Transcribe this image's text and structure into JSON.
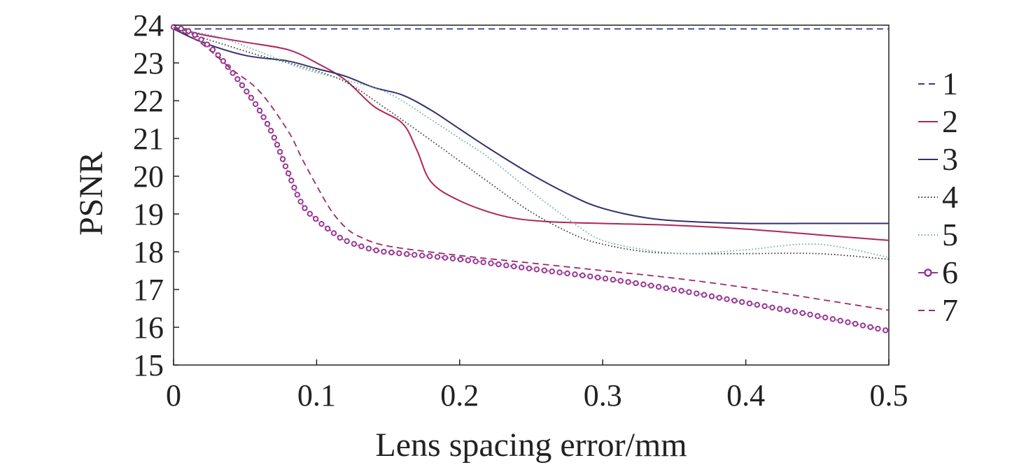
{
  "chart_data": {
    "type": "line",
    "title": "",
    "xlabel": "Lens spacing error/mm",
    "ylabel": "PSNR",
    "xlim": [
      0,
      0.5
    ],
    "ylim": [
      15,
      24
    ],
    "xticks": [
      0,
      0.1,
      0.2,
      0.3,
      0.4,
      0.5
    ],
    "xtick_labels": [
      "0",
      "0.1",
      "0.2",
      "0.3",
      "0.4",
      "0.5"
    ],
    "yticks": [
      15,
      16,
      17,
      18,
      19,
      20,
      21,
      22,
      23,
      24
    ],
    "ytick_labels": [
      "15",
      "16",
      "17",
      "18",
      "19",
      "20",
      "21",
      "22",
      "23",
      "24"
    ],
    "grid": false,
    "legend_position": "right",
    "series": [
      {
        "name": "1",
        "color": "#3a3a8c",
        "style": "dashed",
        "x": [
          0,
          0.5
        ],
        "y": [
          23.9,
          23.9
        ]
      },
      {
        "name": "2",
        "color": "#b0245a",
        "style": "solid",
        "x": [
          0,
          0.02,
          0.05,
          0.08,
          0.1,
          0.12,
          0.14,
          0.16,
          0.17,
          0.18,
          0.2,
          0.23,
          0.26,
          0.3,
          0.35,
          0.4,
          0.45,
          0.5
        ],
        "y": [
          23.95,
          23.75,
          23.55,
          23.35,
          23.0,
          22.55,
          21.85,
          21.4,
          20.7,
          19.85,
          19.35,
          18.95,
          18.8,
          18.75,
          18.7,
          18.6,
          18.45,
          18.3
        ]
      },
      {
        "name": "3",
        "color": "#34306e",
        "style": "solid",
        "x": [
          0,
          0.02,
          0.05,
          0.08,
          0.1,
          0.12,
          0.14,
          0.16,
          0.18,
          0.2,
          0.22,
          0.25,
          0.28,
          0.3,
          0.33,
          0.36,
          0.4,
          0.45,
          0.5
        ],
        "y": [
          23.9,
          23.55,
          23.2,
          23.05,
          22.85,
          22.65,
          22.35,
          22.15,
          21.75,
          21.25,
          20.75,
          20.05,
          19.45,
          19.15,
          18.9,
          18.8,
          18.75,
          18.75,
          18.75
        ]
      },
      {
        "name": "4",
        "color": "#333333",
        "style": "dotted",
        "x": [
          0,
          0.03,
          0.06,
          0.09,
          0.12,
          0.15,
          0.18,
          0.2,
          0.22,
          0.25,
          0.28,
          0.3,
          0.33,
          0.36,
          0.4,
          0.45,
          0.5
        ],
        "y": [
          23.9,
          23.55,
          23.2,
          22.9,
          22.5,
          21.75,
          20.95,
          20.4,
          19.85,
          19.05,
          18.45,
          18.2,
          18.0,
          17.95,
          17.95,
          17.95,
          17.8
        ]
      },
      {
        "name": "5",
        "color": "#6aa9a9",
        "style": "dotted",
        "x": [
          0,
          0.03,
          0.06,
          0.09,
          0.12,
          0.15,
          0.18,
          0.2,
          0.22,
          0.25,
          0.28,
          0.3,
          0.33,
          0.36,
          0.4,
          0.45,
          0.5
        ],
        "y": [
          23.9,
          23.7,
          23.3,
          22.85,
          22.55,
          22.2,
          21.5,
          21.0,
          20.5,
          19.6,
          18.75,
          18.3,
          18.05,
          17.95,
          18.05,
          18.2,
          17.85
        ]
      },
      {
        "name": "6",
        "color": "#9a3796",
        "style": "circles",
        "x": [
          0,
          0.01,
          0.02,
          0.03,
          0.04,
          0.05,
          0.06,
          0.07,
          0.08,
          0.09,
          0.1,
          0.11,
          0.12,
          0.14,
          0.16,
          0.2,
          0.25,
          0.3,
          0.35,
          0.4,
          0.45,
          0.5
        ],
        "y": [
          23.95,
          23.85,
          23.6,
          23.25,
          22.8,
          22.3,
          21.75,
          21.05,
          20.1,
          19.25,
          18.85,
          18.55,
          18.3,
          18.05,
          17.95,
          17.8,
          17.55,
          17.3,
          17.0,
          16.65,
          16.3,
          15.9
        ]
      },
      {
        "name": "7",
        "color": "#a02868",
        "style": "dashed",
        "x": [
          0,
          0.02,
          0.04,
          0.06,
          0.08,
          0.09,
          0.1,
          0.11,
          0.12,
          0.13,
          0.15,
          0.2,
          0.25,
          0.3,
          0.35,
          0.4,
          0.45,
          0.5
        ],
        "y": [
          23.95,
          23.5,
          22.85,
          22.25,
          21.2,
          20.45,
          19.75,
          19.1,
          18.65,
          18.4,
          18.15,
          17.9,
          17.7,
          17.5,
          17.3,
          17.05,
          16.75,
          16.45
        ]
      }
    ]
  }
}
